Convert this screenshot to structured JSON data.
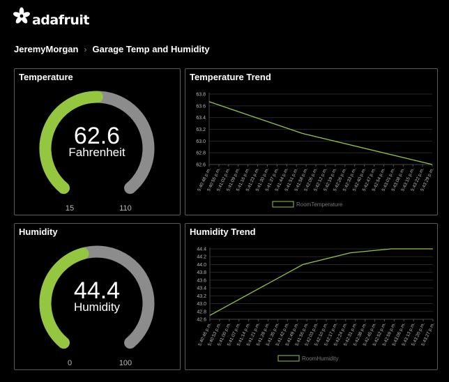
{
  "brand": {
    "name": "adafruit"
  },
  "breadcrumb": {
    "user": "JeremyMorgan",
    "separator": "›",
    "dashboard": "Garage Temp and Humidity"
  },
  "colors": {
    "accent": "#94c63f",
    "track": "#8c8c8c",
    "border": "#5a5a5a"
  },
  "gauges": {
    "temperature": {
      "title": "Temperature",
      "value": "62.6",
      "unit": "Fahrenheit",
      "min": "15",
      "max": "110",
      "numeric": 62.6,
      "minNum": 15,
      "maxNum": 110
    },
    "humidity": {
      "title": "Humidity",
      "value": "44.4",
      "unit": "Humidity",
      "min": "0",
      "max": "100",
      "numeric": 44.4,
      "minNum": 0,
      "maxNum": 100
    }
  },
  "chart_data": [
    {
      "id": "temp",
      "type": "line",
      "title": "Temperature Trend",
      "legend": "RoomTemperature",
      "ylim": [
        62.6,
        63.8
      ],
      "yticks": [
        "63.8",
        "63.6",
        "63.4",
        "63.2",
        "63.0",
        "62.8",
        "62.6"
      ],
      "xticks": [
        "5:40:48 p.m.",
        "5:40:55 p.m.",
        "5:41:02 p.m.",
        "5:41:09 p.m.",
        "5:41:16 p.m.",
        "5:41:23 p.m.",
        "5:41:30 p.m.",
        "5:41:37 p.m.",
        "5:41:44 p.m.",
        "5:41:51 p.m.",
        "5:41:58 p.m.",
        "5:42:05 p.m.",
        "5:42:12 p.m.",
        "5:42:19 p.m.",
        "5:42:26 p.m.",
        "5:42:33 p.m.",
        "5:42:40 p.m.",
        "5:42:47 p.m.",
        "5:42:54 p.m.",
        "5:43:01 p.m.",
        "5:43:08 p.m.",
        "5:43:15 p.m.",
        "5:43:22 p.m.",
        "5:43:29 p.m."
      ],
      "series": [
        {
          "name": "RoomTemperature",
          "points": [
            {
              "x": 0,
              "y": 63.67
            },
            {
              "x": 9.6,
              "y": 63.13
            },
            {
              "x": 23,
              "y": 62.6
            }
          ]
        }
      ]
    },
    {
      "id": "hum",
      "type": "line",
      "title": "Humidity Trend",
      "legend": "RoomHumidity",
      "ylim": [
        42.6,
        44.4
      ],
      "yticks": [
        "44.4",
        "44.2",
        "44.0",
        "43.8",
        "43.6",
        "43.4",
        "43.2",
        "43.0",
        "42.8",
        "42.6"
      ],
      "xticks": [
        "5:40:46 p.m.",
        "5:40:53 p.m.",
        "5:41:00 p.m.",
        "5:41:07 p.m.",
        "5:41:14 p.m.",
        "5:41:21 p.m.",
        "5:41:28 p.m.",
        "5:41:35 p.m.",
        "5:41:42 p.m.",
        "5:41:49 p.m.",
        "5:41:56 p.m.",
        "5:42:03 p.m.",
        "5:42:10 p.m.",
        "5:42:17 p.m.",
        "5:42:24 p.m.",
        "5:42:31 p.m.",
        "5:42:38 p.m.",
        "5:42:45 p.m.",
        "5:42:52 p.m.",
        "5:42:59 p.m.",
        "5:43:06 p.m.",
        "5:43:13 p.m.",
        "5:43:20 p.m.",
        "5:43:27 p.m."
      ],
      "series": [
        {
          "name": "RoomHumidity",
          "points": [
            {
              "x": 0,
              "y": 42.7
            },
            {
              "x": 9.6,
              "y": 44.0
            },
            {
              "x": 14.5,
              "y": 44.3
            },
            {
              "x": 18.7,
              "y": 44.4
            },
            {
              "x": 23,
              "y": 44.4
            }
          ]
        }
      ]
    }
  ]
}
